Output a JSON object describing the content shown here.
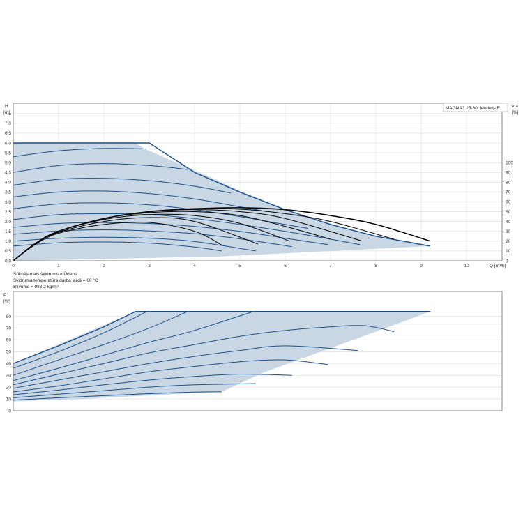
{
  "colors": {
    "area_fill": "#c9d7e5",
    "curve_blue": "#1a4f86",
    "eta_black": "#000000",
    "grid": "#d9d9d9",
    "axis": "#555555"
  },
  "legend_box": {
    "text": "MAGNA3 25-60, Modelis E"
  },
  "notes": [
    "Sūknējamais šķidrums = Ūdens",
    "Šķidruma temperatūra darba laikā = 60 °C",
    "Blīvums = 983.2 kg/m³"
  ],
  "chart_data": [
    {
      "type": "line",
      "name": "QH",
      "ylabel": "H",
      "yunit": "[m]",
      "y2label": "eta",
      "y2unit": "[%]",
      "xlabel": "Q [m³/h]",
      "xlim": [
        0,
        11
      ],
      "ylim": [
        0,
        8
      ],
      "y2lim": [
        0,
        100
      ],
      "xticks": [
        "0",
        "1",
        "2",
        "3",
        "4",
        "5",
        "6",
        "7",
        "8",
        "9",
        "10"
      ],
      "yticks": [
        "0.0",
        "0.5",
        "1.0",
        "1.5",
        "2.0",
        "2.5",
        "3.0",
        "3.5",
        "4.0",
        "4.5",
        "5.0",
        "5.5",
        "6.0",
        "6.5",
        "7.0",
        "7.5"
      ],
      "y2ticks": [
        "0",
        "10",
        "20",
        "30",
        "40",
        "50",
        "60",
        "70",
        "80",
        "90",
        "100"
      ],
      "grid": true,
      "envelope": {
        "x": [
          0,
          2.7,
          2.9,
          3.5,
          4.0,
          4.5,
          5.0,
          5.5,
          6.0,
          6.5,
          7.0,
          7.5,
          8.0,
          8.5,
          9.2,
          4.6,
          0
        ],
        "y": [
          6.0,
          6.0,
          5.7,
          5.1,
          4.6,
          4.1,
          3.55,
          3.1,
          2.65,
          2.25,
          1.9,
          1.55,
          1.25,
          1.0,
          0.75,
          0.22,
          0.0
        ]
      },
      "series": [
        {
          "x": [
            0,
            1.5,
            3.0,
            4.0,
            5.0,
            6.0,
            7.0,
            8.0,
            9.2
          ],
          "y": [
            6.0,
            6.0,
            6.0,
            4.5,
            3.5,
            2.6,
            1.85,
            1.25,
            0.75
          ]
        },
        {
          "x": [
            0,
            1,
            2,
            2.95
          ],
          "y": [
            5.3,
            5.6,
            5.72,
            5.7
          ]
        },
        {
          "x": [
            0,
            1,
            2,
            3,
            3.85
          ],
          "y": [
            4.5,
            4.85,
            4.95,
            4.85,
            4.65
          ]
        },
        {
          "x": [
            0,
            1,
            2,
            3,
            4,
            4.8
          ],
          "y": [
            3.85,
            4.15,
            4.2,
            4.08,
            3.8,
            3.45
          ]
        },
        {
          "x": [
            0,
            1,
            2,
            3,
            4,
            5,
            5.6
          ],
          "y": [
            3.25,
            3.5,
            3.55,
            3.42,
            3.15,
            2.75,
            2.5
          ]
        },
        {
          "x": [
            0,
            1,
            2,
            3,
            4,
            5,
            6,
            6.5
          ],
          "y": [
            2.65,
            2.9,
            2.95,
            2.85,
            2.6,
            2.25,
            1.85,
            1.65
          ]
        },
        {
          "x": [
            0,
            1,
            2,
            3,
            4,
            5,
            6,
            7,
            7.65
          ],
          "y": [
            2.1,
            2.35,
            2.4,
            2.35,
            2.15,
            1.85,
            1.5,
            1.1,
            0.82
          ]
        },
        {
          "x": [
            0,
            1,
            2,
            3,
            4,
            5,
            6,
            6.95
          ],
          "y": [
            1.7,
            1.9,
            1.95,
            1.9,
            1.75,
            1.5,
            1.15,
            0.82
          ]
        },
        {
          "x": [
            0,
            1,
            2,
            3,
            4,
            5,
            6.15
          ],
          "y": [
            1.35,
            1.52,
            1.58,
            1.52,
            1.38,
            1.12,
            0.72
          ]
        },
        {
          "x": [
            0,
            1,
            2,
            3,
            4,
            5.35
          ],
          "y": [
            1.0,
            1.15,
            1.2,
            1.15,
            0.98,
            0.5
          ]
        },
        {
          "x": [
            0,
            1,
            2,
            3,
            4,
            4.6
          ],
          "y": [
            0.75,
            0.92,
            0.96,
            0.9,
            0.7,
            0.5
          ]
        }
      ],
      "eta_series": [
        {
          "x": [
            0,
            0.5,
            1,
            2,
            3,
            4,
            5,
            6,
            7,
            8,
            9.2
          ],
          "eta": [
            0,
            18,
            30,
            43,
            50,
            53,
            54,
            52,
            46,
            37,
            20
          ]
        },
        {
          "x": [
            0,
            0.5,
            1,
            2,
            3,
            4,
            5,
            6,
            7,
            8.4
          ],
          "eta": [
            0,
            18,
            30,
            43,
            50,
            53,
            52.5,
            48,
            40,
            22
          ]
        },
        {
          "x": [
            0,
            0.5,
            1,
            2,
            3,
            4,
            5,
            6,
            7.7
          ],
          "eta": [
            0,
            18,
            30,
            43,
            50,
            52,
            50,
            43,
            20
          ]
        },
        {
          "x": [
            0,
            0.5,
            1,
            2,
            3,
            4,
            5,
            6,
            7.0
          ],
          "eta": [
            0,
            18,
            30,
            43,
            49,
            50,
            46,
            35,
            22
          ]
        },
        {
          "x": [
            0,
            0.5,
            1,
            2,
            3,
            4,
            5,
            6.1
          ],
          "eta": [
            0,
            18,
            30,
            42,
            47,
            46,
            38,
            20
          ]
        },
        {
          "x": [
            0,
            0.5,
            1,
            2,
            3,
            4,
            5.4
          ],
          "eta": [
            0,
            18,
            29,
            40,
            44,
            40,
            17
          ]
        },
        {
          "x": [
            0,
            0.5,
            1,
            2,
            3,
            4,
            4.6
          ],
          "eta": [
            0,
            17,
            28,
            37,
            39,
            30,
            16
          ]
        }
      ]
    },
    {
      "type": "line",
      "name": "P1",
      "ylabel": "P1",
      "yunit": "[W]",
      "xlim": [
        0,
        11
      ],
      "ylim": [
        0,
        90
      ],
      "yticks": [
        "0",
        "10",
        "20",
        "30",
        "40",
        "50",
        "60",
        "70",
        "80"
      ],
      "grid": true,
      "envelope": {
        "x": [
          0,
          2.7,
          9.2,
          8.5,
          7.5,
          6.5,
          5.5,
          4.6,
          1.5,
          0
        ],
        "y": [
          40,
          84,
          84,
          74,
          60,
          46,
          32,
          16,
          10,
          8
        ]
      },
      "series": [
        {
          "x": [
            0,
            1,
            2,
            2.7,
            9.2
          ],
          "y": [
            40,
            55,
            71,
            84,
            84
          ]
        },
        {
          "x": [
            0,
            1,
            2,
            2.95
          ],
          "y": [
            36,
            50,
            66,
            84
          ]
        },
        {
          "x": [
            0,
            1,
            2,
            3,
            3.85
          ],
          "y": [
            30,
            43,
            56,
            70,
            84
          ]
        },
        {
          "x": [
            0,
            1,
            2,
            3,
            4,
            5.3
          ],
          "y": [
            25.5,
            36,
            47,
            58,
            68,
            84
          ]
        },
        {
          "x": [
            0,
            1,
            2,
            3,
            4,
            5,
            6,
            7,
            7.75,
            8.4
          ],
          "y": [
            22,
            31,
            40,
            49,
            56,
            63,
            68,
            71,
            72,
            67
          ]
        },
        {
          "x": [
            0,
            1,
            2,
            3,
            4,
            5,
            6,
            7.6
          ],
          "y": [
            19,
            26,
            33,
            40,
            46,
            51,
            55,
            51
          ]
        },
        {
          "x": [
            0,
            1,
            2,
            3,
            4,
            5,
            6,
            6.95
          ],
          "y": [
            16,
            21,
            27,
            33,
            37.5,
            41.5,
            43,
            39
          ]
        },
        {
          "x": [
            0,
            1,
            2,
            3,
            4,
            5,
            6.15
          ],
          "y": [
            13.5,
            17.5,
            22,
            26,
            29,
            31,
            30
          ]
        },
        {
          "x": [
            0,
            1,
            2,
            3,
            4,
            5.35
          ],
          "y": [
            11,
            14,
            17,
            20,
            22,
            23
          ]
        },
        {
          "x": [
            0,
            1,
            2,
            3,
            4,
            4.6
          ],
          "y": [
            9,
            11,
            12.8,
            14.5,
            15.8,
            16
          ]
        }
      ]
    }
  ]
}
